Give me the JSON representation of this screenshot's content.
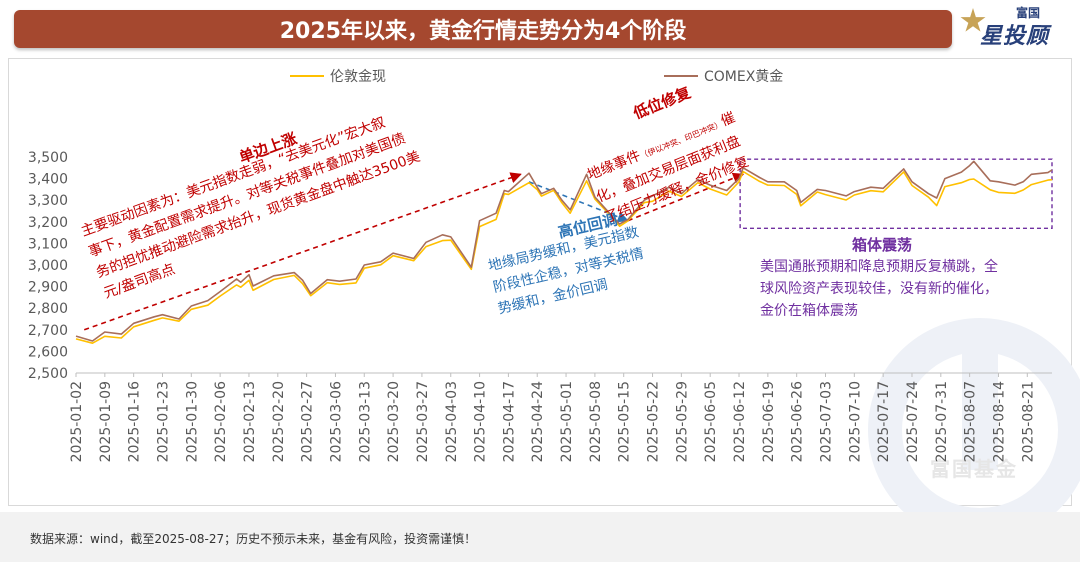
{
  "header": {
    "title": "2025年以来，黄金行情走势分为4个阶段",
    "logo_small": "富国",
    "logo_main": "星投顾"
  },
  "legend": {
    "series1": "伦敦金现",
    "series2": "COMEX黄金"
  },
  "annotations": {
    "phase1": {
      "title": "单边上涨",
      "lines": [
        "主要驱动因素为：美元指数走弱，“去美元化”宏大叙",
        "事下，黄金配置需求提升。对等关税事件叠加对美国债",
        "务的担忧推动避险需求抬升，现货黄金盘中触达3500美",
        "元/盎司高点"
      ]
    },
    "phase2": {
      "title": "高位回调",
      "lines": [
        "地缘局势缓和，美元指数",
        "阶段性企稳，对等关税情",
        "势缓和，金价回调"
      ]
    },
    "phase3": {
      "title": "低位修复",
      "line1_prefix": "地缘事件",
      "line1_note": "（伊以冲突、印巴冲突）",
      "line1_suffix": "催",
      "lines": [
        "化，叠加交易层面获利盘",
        "了结压力缓释，金价修复"
      ]
    },
    "phase4": {
      "title": "箱体震荡",
      "lines": [
        "美国通胀预期和降息预期反复横跳，全",
        "球风险资产表现较佳，没有新的催化，",
        "金价在箱体震荡"
      ]
    }
  },
  "watermark": {
    "text": "富国基金"
  },
  "footer": {
    "text": "数据来源：wind，截至2025-08-27；历史不预示未来，基金有风险，投资需谨慎！"
  },
  "chart_data": {
    "type": "line",
    "title": "2025年以来，黄金行情走势分为4个阶段",
    "xlabel": "",
    "ylabel": "",
    "ylim": [
      2500,
      3500
    ],
    "yticks": [
      2500,
      2600,
      2700,
      2800,
      2900,
      3000,
      3100,
      3200,
      3300,
      3400,
      3500
    ],
    "ytick_labels": [
      "2,500",
      "2,600",
      "2,700",
      "2,800",
      "2,900",
      "3,000",
      "3,100",
      "3,200",
      "3,300",
      "3,400",
      "3,500"
    ],
    "xlim": [
      "2025-01-02",
      "2025-08-27"
    ],
    "xtick_labels": [
      "2025-01-02",
      "2025-01-09",
      "2025-01-16",
      "2025-01-23",
      "2025-01-30",
      "2025-02-06",
      "2025-02-13",
      "2025-02-20",
      "2025-02-27",
      "2025-03-06",
      "2025-03-13",
      "2025-03-20",
      "2025-03-27",
      "2025-04-03",
      "2025-04-10",
      "2025-04-17",
      "2025-04-24",
      "2025-05-01",
      "2025-05-08",
      "2025-05-15",
      "2025-05-22",
      "2025-05-29",
      "2025-06-05",
      "2025-06-12",
      "2025-06-19",
      "2025-06-26",
      "2025-07-03",
      "2025-07-10",
      "2025-07-17",
      "2025-07-24",
      "2025-07-31",
      "2025-08-07",
      "2025-08-14",
      "2025-08-21"
    ],
    "grid": false,
    "legend_position": "top-center",
    "series": [
      {
        "name": "伦敦金现",
        "color": "#ffc000",
        "points": [
          [
            "2025-01-02",
            2658
          ],
          [
            "2025-01-06",
            2638
          ],
          [
            "2025-01-09",
            2670
          ],
          [
            "2025-01-13",
            2662
          ],
          [
            "2025-01-16",
            2714
          ],
          [
            "2025-01-21",
            2744
          ],
          [
            "2025-01-23",
            2755
          ],
          [
            "2025-01-27",
            2740
          ],
          [
            "2025-01-30",
            2795
          ],
          [
            "2025-02-03",
            2814
          ],
          [
            "2025-02-06",
            2856
          ],
          [
            "2025-02-10",
            2908
          ],
          [
            "2025-02-11",
            2897
          ],
          [
            "2025-02-13",
            2929
          ],
          [
            "2025-02-14",
            2883
          ],
          [
            "2025-02-19",
            2933
          ],
          [
            "2025-02-24",
            2952
          ],
          [
            "2025-02-26",
            2914
          ],
          [
            "2025-02-28",
            2858
          ],
          [
            "2025-03-04",
            2918
          ],
          [
            "2025-03-07",
            2910
          ],
          [
            "2025-03-11",
            2917
          ],
          [
            "2025-03-13",
            2985
          ],
          [
            "2025-03-17",
            3001
          ],
          [
            "2025-03-20",
            3043
          ],
          [
            "2025-03-25",
            3020
          ],
          [
            "2025-03-28",
            3085
          ],
          [
            "2025-04-01",
            3113
          ],
          [
            "2025-04-03",
            3115
          ],
          [
            "2025-04-08",
            2980
          ],
          [
            "2025-04-10",
            3178
          ],
          [
            "2025-04-14",
            3211
          ],
          [
            "2025-04-16",
            3330
          ],
          [
            "2025-04-17",
            3327
          ],
          [
            "2025-04-22",
            3381
          ],
          [
            "2025-04-24",
            3349
          ],
          [
            "2025-04-25",
            3319
          ],
          [
            "2025-04-28",
            3346
          ],
          [
            "2025-04-30",
            3288
          ],
          [
            "2025-05-02",
            3240
          ],
          [
            "2025-05-06",
            3390
          ],
          [
            "2025-05-08",
            3305
          ],
          [
            "2025-05-12",
            3225
          ],
          [
            "2025-05-14",
            3179
          ],
          [
            "2025-05-16",
            3204
          ],
          [
            "2025-05-20",
            3289
          ],
          [
            "2025-05-22",
            3295
          ],
          [
            "2025-05-26",
            3342
          ],
          [
            "2025-05-29",
            3317
          ],
          [
            "2025-06-02",
            3381
          ],
          [
            "2025-06-05",
            3352
          ],
          [
            "2025-06-09",
            3324
          ],
          [
            "2025-06-12",
            3385
          ],
          [
            "2025-06-13",
            3433
          ],
          [
            "2025-06-17",
            3387
          ],
          [
            "2025-06-19",
            3370
          ],
          [
            "2025-06-23",
            3368
          ],
          [
            "2025-06-26",
            3327
          ],
          [
            "2025-06-27",
            3274
          ],
          [
            "2025-07-01",
            3338
          ],
          [
            "2025-07-03",
            3326
          ],
          [
            "2025-07-08",
            3301
          ],
          [
            "2025-07-10",
            3324
          ],
          [
            "2025-07-14",
            3344
          ],
          [
            "2025-07-17",
            3339
          ],
          [
            "2025-07-22",
            3431
          ],
          [
            "2025-07-24",
            3368
          ],
          [
            "2025-07-28",
            3314
          ],
          [
            "2025-07-30",
            3275
          ],
          [
            "2025-08-01",
            3363
          ],
          [
            "2025-08-05",
            3381
          ],
          [
            "2025-08-07",
            3396
          ],
          [
            "2025-08-08",
            3398
          ],
          [
            "2025-08-12",
            3348
          ],
          [
            "2025-08-14",
            3336
          ],
          [
            "2025-08-18",
            3332
          ],
          [
            "2025-08-20",
            3347
          ],
          [
            "2025-08-22",
            3372
          ],
          [
            "2025-08-26",
            3393
          ],
          [
            "2025-08-27",
            3395
          ]
        ]
      },
      {
        "name": "COMEX黄金",
        "color": "#a86e5a",
        "points": [
          [
            "2025-01-02",
            2671
          ],
          [
            "2025-01-06",
            2648
          ],
          [
            "2025-01-09",
            2690
          ],
          [
            "2025-01-13",
            2680
          ],
          [
            "2025-01-16",
            2730
          ],
          [
            "2025-01-21",
            2760
          ],
          [
            "2025-01-23",
            2770
          ],
          [
            "2025-01-27",
            2750
          ],
          [
            "2025-01-30",
            2810
          ],
          [
            "2025-02-03",
            2835
          ],
          [
            "2025-02-06",
            2877
          ],
          [
            "2025-02-10",
            2935
          ],
          [
            "2025-02-11",
            2920
          ],
          [
            "2025-02-13",
            2955
          ],
          [
            "2025-02-14",
            2903
          ],
          [
            "2025-02-19",
            2950
          ],
          [
            "2025-02-24",
            2965
          ],
          [
            "2025-02-26",
            2930
          ],
          [
            "2025-02-28",
            2868
          ],
          [
            "2025-03-04",
            2932
          ],
          [
            "2025-03-07",
            2925
          ],
          [
            "2025-03-11",
            2935
          ],
          [
            "2025-03-13",
            3000
          ],
          [
            "2025-03-17",
            3015
          ],
          [
            "2025-03-20",
            3055
          ],
          [
            "2025-03-25",
            3030
          ],
          [
            "2025-03-28",
            3105
          ],
          [
            "2025-04-01",
            3140
          ],
          [
            "2025-04-03",
            3130
          ],
          [
            "2025-04-08",
            2990
          ],
          [
            "2025-04-10",
            3205
          ],
          [
            "2025-04-14",
            3240
          ],
          [
            "2025-04-16",
            3345
          ],
          [
            "2025-04-17",
            3340
          ],
          [
            "2025-04-22",
            3425
          ],
          [
            "2025-04-24",
            3360
          ],
          [
            "2025-04-25",
            3330
          ],
          [
            "2025-04-28",
            3355
          ],
          [
            "2025-04-30",
            3300
          ],
          [
            "2025-05-02",
            3255
          ],
          [
            "2025-05-06",
            3420
          ],
          [
            "2025-05-08",
            3315
          ],
          [
            "2025-05-12",
            3230
          ],
          [
            "2025-05-14",
            3190
          ],
          [
            "2025-05-16",
            3210
          ],
          [
            "2025-05-20",
            3300
          ],
          [
            "2025-05-22",
            3320
          ],
          [
            "2025-05-26",
            3360
          ],
          [
            "2025-05-29",
            3330
          ],
          [
            "2025-06-02",
            3395
          ],
          [
            "2025-06-05",
            3370
          ],
          [
            "2025-06-09",
            3345
          ],
          [
            "2025-06-12",
            3400
          ],
          [
            "2025-06-13",
            3450
          ],
          [
            "2025-06-17",
            3405
          ],
          [
            "2025-06-19",
            3385
          ],
          [
            "2025-06-23",
            3385
          ],
          [
            "2025-06-26",
            3345
          ],
          [
            "2025-06-27",
            3290
          ],
          [
            "2025-07-01",
            3350
          ],
          [
            "2025-07-03",
            3345
          ],
          [
            "2025-07-08",
            3320
          ],
          [
            "2025-07-10",
            3340
          ],
          [
            "2025-07-14",
            3360
          ],
          [
            "2025-07-17",
            3355
          ],
          [
            "2025-07-22",
            3445
          ],
          [
            "2025-07-24",
            3385
          ],
          [
            "2025-07-28",
            3330
          ],
          [
            "2025-07-30",
            3310
          ],
          [
            "2025-08-01",
            3400
          ],
          [
            "2025-08-05",
            3430
          ],
          [
            "2025-08-07",
            3460
          ],
          [
            "2025-08-08",
            3480
          ],
          [
            "2025-08-12",
            3390
          ],
          [
            "2025-08-14",
            3385
          ],
          [
            "2025-08-18",
            3370
          ],
          [
            "2025-08-20",
            3385
          ],
          [
            "2025-08-22",
            3420
          ],
          [
            "2025-08-26",
            3428
          ],
          [
            "2025-08-27",
            3440
          ]
        ]
      }
    ],
    "phase_markers": {
      "rise": {
        "from": [
          "2025-01-04",
          2700
        ],
        "to": [
          "2025-04-20",
          3420
        ],
        "color": "#c00000"
      },
      "pullback": {
        "from": [
          "2025-04-22",
          3385
        ],
        "to": [
          "2025-05-16",
          3205
        ],
        "color": "#2e75b6"
      },
      "recovery": {
        "from": [
          "2025-05-16",
          3205
        ],
        "to": [
          "2025-06-13",
          3420
        ],
        "color": "#c00000"
      },
      "range_box": {
        "x_from": "2025-06-13",
        "x_to": "2025-08-27",
        "y_from": 3170,
        "y_to": 3490,
        "color": "#7030a0"
      }
    }
  }
}
